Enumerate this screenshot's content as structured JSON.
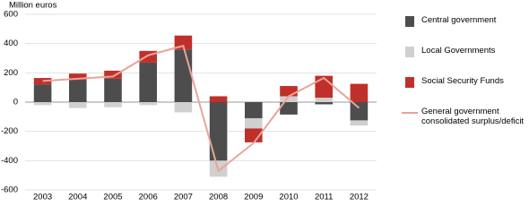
{
  "chart_data": {
    "type": "bar",
    "y_label": "Million euros",
    "categories": [
      "2003",
      "2004",
      "2005",
      "2006",
      "2007",
      "2008",
      "2009",
      "2010",
      "2011",
      "2012"
    ],
    "series": [
      {
        "name": "Central government",
        "color": "#4d4d4d",
        "values": [
          120,
          150,
          160,
          270,
          360,
          -400,
          -110,
          -85,
          -15,
          -125
        ]
      },
      {
        "name": "Local Governments",
        "color": "#d0d0d0",
        "values": [
          -20,
          -40,
          -35,
          -20,
          -70,
          -110,
          -70,
          40,
          30,
          -35
        ]
      },
      {
        "name": "Social Security Funds",
        "color": "#c0302a",
        "values": [
          45,
          45,
          55,
          80,
          95,
          40,
          -95,
          70,
          150,
          125
        ]
      },
      {
        "name": "General government consolidated surplus/deficit",
        "color": "#e8a49a",
        "type": "line",
        "values": [
          145,
          160,
          175,
          320,
          385,
          -470,
          -280,
          40,
          165,
          -40
        ]
      }
    ],
    "ylim": [
      -600,
      600
    ],
    "yticks": [
      -600,
      -400,
      -200,
      0,
      200,
      400,
      600
    ],
    "grid": true
  }
}
